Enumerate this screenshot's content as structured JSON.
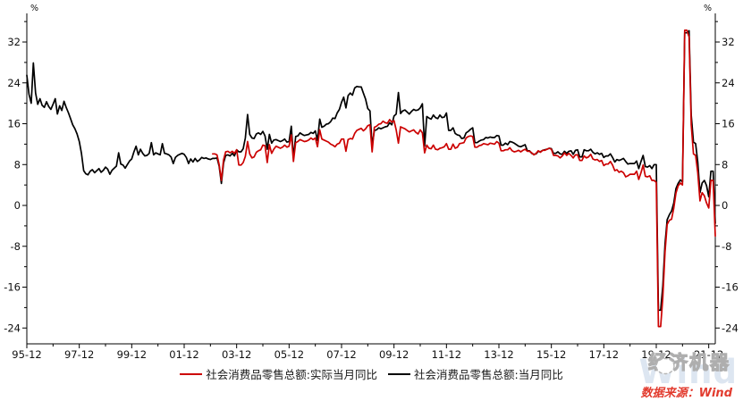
{
  "chart_data": {
    "type": "line",
    "title": "",
    "unit": "%",
    "grid": false,
    "legend_position": "bottom-center",
    "x_start": "1995-12",
    "x_end": "2022-03",
    "x_tick_labels": [
      "95-12",
      "97-12",
      "99-12",
      "01-12",
      "03-12",
      "05-12",
      "07-12",
      "09-12",
      "11-12",
      "13-12",
      "15-12",
      "17-12",
      "19-12",
      "21-12"
    ],
    "y_ticks": [
      -24,
      -16,
      -8,
      0,
      8,
      16,
      24,
      32
    ],
    "ylim": [
      -27.1,
      37.6
    ],
    "series": [
      {
        "id": "real-yoy",
        "name": "社会消费品零售总额:实际当月同比",
        "color": "#cc0000",
        "start": "2003-01",
        "values": [
          10.1,
          10.1,
          9.9,
          8.0,
          4.9,
          8.9,
          10.5,
          10.6,
          10.3,
          10.6,
          10.2,
          10.9,
          7.9,
          7.9,
          8.4,
          9.6,
          12.5,
          10.1,
          9.3,
          9.5,
          10.4,
          10.7,
          10.9,
          11.8,
          11.7,
          8.4,
          11.9,
          10.2,
          11.0,
          11.6,
          11.4,
          11.2,
          11.4,
          11.8,
          11.4,
          11.6,
          13.8,
          8.6,
          12.3,
          12.5,
          12.9,
          12.7,
          12.5,
          12.6,
          12.8,
          13.2,
          12.9,
          13.2,
          11.5,
          14.8,
          13.0,
          12.8,
          12.6,
          12.4,
          12.0,
          11.8,
          11.5,
          12.0,
          12.2,
          13.0,
          13.0,
          10.6,
          12.9,
          13.1,
          13.0,
          14.1,
          14.7,
          14.9,
          15.1,
          14.6,
          15.0,
          15.6,
          15.8,
          10.5,
          15.3,
          15.5,
          15.9,
          16.0,
          16.5,
          16.2,
          16.1,
          16.8,
          16.3,
          16.6,
          14.8,
          12.2,
          15.4,
          15.2,
          15.0,
          14.7,
          14.4,
          14.6,
          14.8,
          14.3,
          14.0,
          14.8,
          14.2,
          10.3,
          11.8,
          11.2,
          11.1,
          11.8,
          11.0,
          10.9,
          11.2,
          11.3,
          11.5,
          12.1,
          11.0,
          11.0,
          12.0,
          11.2,
          11.4,
          12.1,
          12.2,
          12.3,
          13.2,
          13.5,
          13.6,
          13.5,
          11.4,
          11.4,
          11.7,
          11.8,
          12.1,
          12.0,
          11.9,
          12.2,
          12.1,
          12.0,
          12.5,
          12.2,
          10.7,
          10.7,
          10.9,
          10.9,
          11.3,
          10.7,
          10.5,
          10.6,
          10.8,
          10.5,
          10.8,
          11.0,
          10.6,
          10.6,
          10.3,
          9.9,
          10.2,
          10.7,
          10.4,
          10.8,
          10.8,
          11.0,
          11.2,
          11.0,
          9.8,
          9.8,
          9.7,
          9.3,
          9.7,
          10.3,
          9.8,
          10.2,
          9.8,
          9.3,
          9.9,
          9.9,
          8.8,
          8.8,
          9.7,
          9.3,
          9.5,
          10.0,
          9.1,
          8.9,
          9.0,
          8.6,
          8.8,
          7.8,
          8.1,
          8.1,
          8.6,
          7.9,
          6.8,
          7.0,
          6.5,
          6.7,
          6.4,
          5.6,
          5.8,
          6.1,
          6.1,
          6.1,
          6.7,
          5.1,
          6.4,
          7.9,
          5.7,
          5.6,
          5.8,
          4.9,
          4.9,
          4.5,
          -23.7,
          -23.7,
          -18.1,
          -9.1,
          -3.7,
          -2.9,
          -2.7,
          -0.5,
          2.4,
          3.8,
          4.4,
          4.0,
          34.3,
          34.3,
          33.0,
          15.8,
          10.1,
          9.8,
          6.4,
          0.9,
          2.5,
          1.9,
          0.5,
          -0.5,
          4.9,
          4.9,
          -6.0
        ]
      },
      {
        "id": "nominal-yoy",
        "name": "社会消费品零售总额:当月同比",
        "color": "#000000",
        "start": "1995-12",
        "values": [
          25.5,
          21.8,
          20.0,
          27.9,
          22.0,
          19.8,
          20.9,
          19.6,
          19.2,
          20.3,
          19.4,
          18.8,
          19.8,
          20.9,
          17.9,
          19.5,
          18.6,
          20.4,
          19.2,
          18.2,
          17.0,
          15.8,
          15.0,
          14.0,
          12.5,
          10.2,
          6.8,
          6.2,
          6.0,
          6.7,
          7.0,
          6.4,
          6.8,
          7.2,
          6.5,
          6.9,
          7.5,
          7.1,
          6.1,
          6.9,
          7.3,
          7.7,
          10.3,
          8.1,
          7.9,
          7.3,
          8.0,
          8.7,
          9.1,
          10.5,
          11.6,
          9.9,
          11.0,
          10.2,
          9.7,
          9.8,
          10.2,
          12.3,
          9.9,
          10.3,
          10.1,
          9.9,
          12.1,
          10.2,
          10.1,
          9.9,
          9.5,
          8.2,
          9.4,
          9.8,
          10.0,
          10.2,
          10.0,
          9.4,
          8.2,
          9.1,
          8.5,
          9.2,
          8.6,
          8.9,
          9.4,
          9.2,
          9.3,
          9.1,
          9.0,
          9.2,
          9.2,
          9.3,
          7.7,
          4.3,
          8.3,
          9.8,
          9.9,
          9.7,
          10.2,
          9.7,
          10.9,
          10.5,
          10.5,
          11.1,
          13.2,
          17.8,
          13.9,
          13.2,
          13.1,
          14.0,
          14.2,
          13.9,
          14.5,
          13.6,
          11.0,
          13.9,
          12.2,
          12.8,
          12.9,
          12.7,
          12.5,
          12.7,
          13.0,
          12.4,
          12.5,
          15.5,
          9.4,
          13.5,
          13.6,
          14.2,
          13.9,
          13.7,
          13.8,
          13.9,
          14.3,
          14.1,
          14.6,
          12.7,
          16.9,
          15.3,
          15.5,
          15.9,
          16.0,
          16.4,
          17.1,
          17.0,
          18.1,
          18.8,
          20.2,
          21.2,
          19.1,
          21.5,
          22.0,
          21.6,
          23.0,
          23.3,
          23.2,
          23.2,
          22.0,
          20.8,
          19.0,
          18.5,
          11.6,
          14.7,
          14.8,
          15.2,
          15.0,
          15.2,
          15.4,
          15.5,
          16.2,
          15.8,
          17.5,
          17.9,
          22.1,
          18.0,
          18.5,
          18.7,
          18.3,
          17.9,
          18.4,
          18.8,
          18.6,
          18.7,
          19.1,
          19.9,
          11.6,
          17.4,
          17.1,
          16.9,
          17.7,
          17.2,
          17.0,
          17.7,
          17.2,
          17.3,
          18.1,
          14.7,
          14.7,
          15.2,
          14.1,
          13.8,
          13.7,
          13.1,
          13.2,
          14.2,
          14.5,
          14.9,
          15.2,
          12.3,
          12.3,
          12.6,
          12.8,
          12.9,
          13.3,
          13.2,
          13.4,
          13.3,
          13.3,
          13.7,
          13.6,
          11.8,
          11.8,
          12.2,
          11.9,
          12.5,
          12.4,
          12.2,
          11.9,
          11.6,
          11.5,
          11.7,
          11.9,
          10.7,
          10.7,
          10.2,
          10.0,
          10.1,
          10.6,
          10.5,
          10.8,
          10.9,
          11.0,
          11.2,
          11.1,
          10.2,
          10.2,
          10.5,
          10.1,
          10.0,
          10.6,
          10.2,
          10.6,
          10.7,
          10.0,
          10.8,
          10.9,
          9.5,
          9.5,
          10.9,
          10.7,
          10.7,
          11.0,
          10.4,
          10.1,
          10.3,
          10.0,
          10.2,
          9.4,
          9.7,
          9.7,
          10.1,
          9.4,
          8.5,
          9.0,
          8.8,
          9.0,
          9.2,
          8.6,
          8.1,
          8.2,
          8.2,
          8.2,
          8.7,
          7.2,
          8.6,
          9.8,
          7.6,
          7.5,
          7.8,
          7.2,
          8.0,
          8.0,
          -20.5,
          -20.5,
          -15.8,
          -7.5,
          -2.8,
          -1.8,
          -1.1,
          0.5,
          3.3,
          4.3,
          5.0,
          4.6,
          33.8,
          33.8,
          34.2,
          17.7,
          12.4,
          12.1,
          8.5,
          2.5,
          4.4,
          4.9,
          3.9,
          1.7,
          6.7,
          6.7,
          -3.5
        ]
      }
    ]
  },
  "legend": {
    "items": [
      {
        "label": "社会消费品零售总额:实际当月同比",
        "color": "#cc0000"
      },
      {
        "label": "社会消费品零售总额:当月同比",
        "color": "#000000"
      }
    ]
  },
  "watermark": {
    "brand": "经济机器",
    "ghost": "Wind"
  },
  "footer": {
    "source": "数据来源：Wind"
  }
}
